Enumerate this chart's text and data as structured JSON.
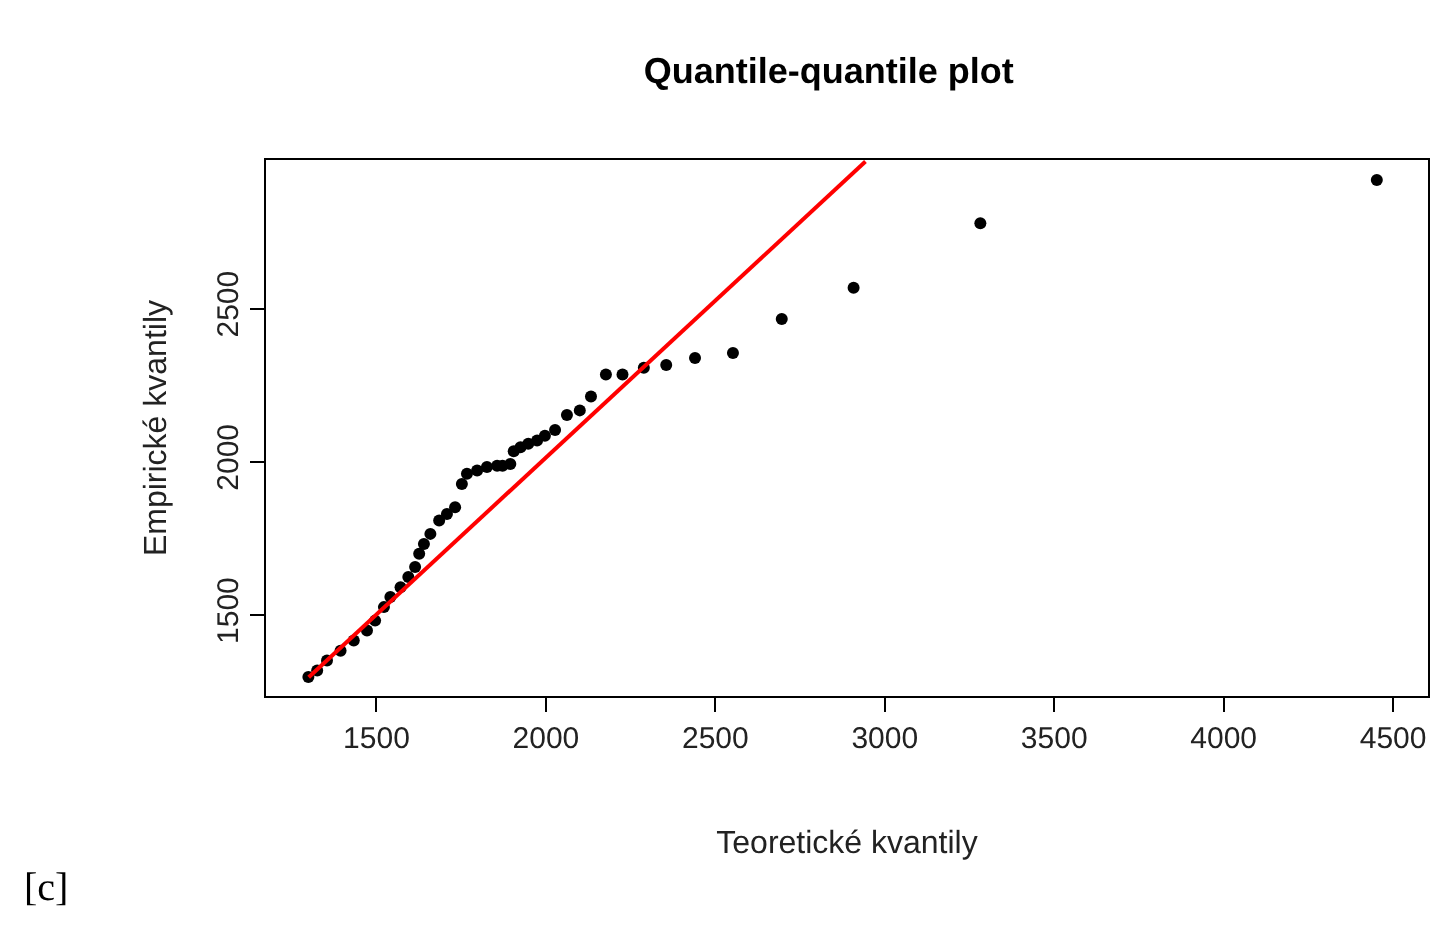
{
  "chart_data": {
    "type": "scatter",
    "title": "Quantile-quantile plot",
    "xlabel": "Teoretické kvantily",
    "ylabel": "Empirické kvantily",
    "annotations": [
      "[c]"
    ],
    "series": [
      {
        "color": "#000000",
        "marker": "circle",
        "x": [
          1299,
          1325,
          1354,
          1394,
          1433,
          1472,
          1496,
          1522,
          1541,
          1571,
          1594,
          1614,
          1626,
          1640,
          1659,
          1685,
          1708,
          1732,
          1752,
          1767,
          1797,
          1826,
          1856,
          1872,
          1895,
          1905,
          1925,
          1948,
          1974,
          1997,
          2027,
          2062,
          2100,
          2133,
          2177,
          2226,
          2289,
          2355,
          2440,
          2552,
          2696,
          2908,
          3282,
          4452
        ],
        "values": [
          1298,
          1319,
          1352,
          1384,
          1417,
          1450,
          1482,
          1526,
          1559,
          1591,
          1624,
          1657,
          1700,
          1732,
          1765,
          1809,
          1830,
          1852,
          1928,
          1961,
          1972,
          1983,
          1987,
          1987,
          1993,
          2035,
          2048,
          2059,
          2070,
          2085,
          2104,
          2153,
          2168,
          2213,
          2285,
          2285,
          2307,
          2316,
          2339,
          2355,
          2466,
          2568,
          2779,
          2920
        ]
      },
      {
        "type": "line",
        "color": "#ff0000",
        "line_style": "solid",
        "x": [
          1300,
          2943
        ],
        "values": [
          1297,
          2980
        ]
      }
    ],
    "xlim": [
      1174,
      4603
    ],
    "ylim": [
      1236,
      2985
    ],
    "xticks": [
      1500,
      2000,
      2500,
      3000,
      3500,
      4000,
      4500
    ],
    "yticks": [
      1500,
      2000,
      2500
    ],
    "legend": false
  }
}
